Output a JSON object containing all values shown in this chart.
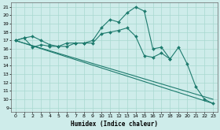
{
  "xlabel": "Humidex (Indice chaleur)",
  "bg_color": "#ceecea",
  "line_color": "#1e7b6e",
  "grid_color": "#a8d8d0",
  "xlim": [
    -0.5,
    23.5
  ],
  "ylim": [
    8.5,
    21.5
  ],
  "xticks": [
    0,
    1,
    2,
    3,
    4,
    5,
    6,
    7,
    8,
    9,
    10,
    11,
    12,
    13,
    14,
    15,
    16,
    17,
    18,
    19,
    20,
    21,
    22,
    23
  ],
  "yticks": [
    9,
    10,
    11,
    12,
    13,
    14,
    15,
    16,
    17,
    18,
    19,
    20,
    21
  ],
  "line1_x": [
    0,
    1,
    2,
    3,
    4,
    5,
    6,
    7,
    8,
    9,
    10,
    11,
    12,
    13,
    14,
    15,
    16,
    17,
    18,
    19,
    20,
    21,
    22,
    23
  ],
  "line1_y": [
    17.0,
    17.3,
    16.2,
    16.5,
    16.3,
    16.3,
    16.7,
    16.7,
    16.7,
    17.0,
    18.5,
    19.5,
    19.2,
    20.3,
    21.0,
    20.5,
    16.0,
    16.2,
    14.8,
    16.2,
    14.2,
    11.5,
    10.0,
    9.5
  ],
  "line2_x": [
    0,
    1,
    2,
    3,
    4,
    5,
    6,
    7,
    8,
    9,
    10,
    11,
    12,
    13,
    14,
    15,
    16,
    17,
    18
  ],
  "line2_y": [
    17.0,
    17.3,
    17.5,
    17.0,
    16.5,
    16.3,
    16.3,
    16.7,
    16.7,
    16.7,
    17.8,
    18.0,
    18.2,
    18.5,
    17.5,
    15.2,
    15.0,
    15.5,
    14.8
  ],
  "line3_x": [
    0,
    23
  ],
  "line3_y": [
    17.0,
    9.5
  ],
  "line4_x": [
    0,
    23
  ],
  "line4_y": [
    17.0,
    10.0
  ]
}
